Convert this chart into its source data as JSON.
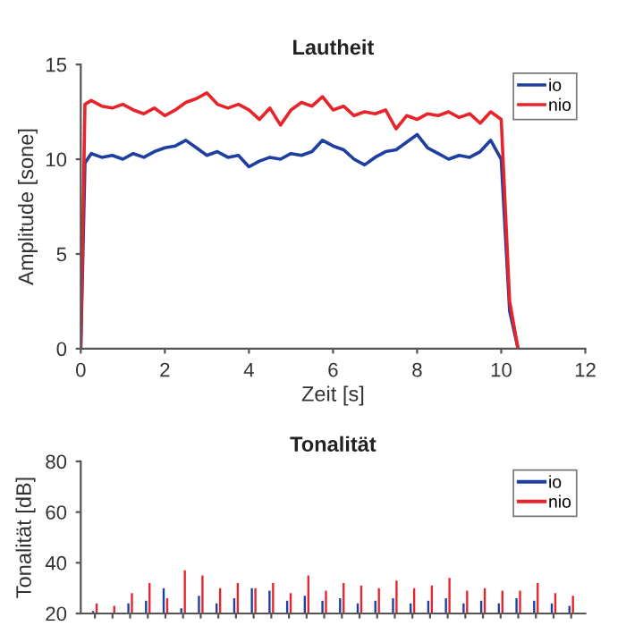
{
  "chart_data": [
    {
      "type": "line",
      "title": "Lautheit",
      "xlabel": "Zeit [s]",
      "ylabel": "Amplitude [sone]",
      "xlim": [
        0,
        12
      ],
      "ylim": [
        0,
        15
      ],
      "xticks": [
        0,
        2,
        4,
        6,
        8,
        10,
        12
      ],
      "yticks": [
        0,
        5,
        10,
        15
      ],
      "legend": "top right",
      "grid": false,
      "series": [
        {
          "name": "io",
          "color": "#1f3fa0",
          "x": [
            0,
            0.1,
            0.25,
            0.5,
            0.75,
            1,
            1.25,
            1.5,
            1.75,
            2,
            2.25,
            2.5,
            2.75,
            3,
            3.25,
            3.5,
            3.75,
            4,
            4.25,
            4.5,
            4.75,
            5,
            5.25,
            5.5,
            5.75,
            6,
            6.25,
            6.5,
            6.75,
            7,
            7.25,
            7.5,
            7.75,
            8,
            8.25,
            8.5,
            8.75,
            9,
            9.25,
            9.5,
            9.75,
            10,
            10.2,
            10.4
          ],
          "values": [
            0,
            9.8,
            10.3,
            10.1,
            10.2,
            10.0,
            10.3,
            10.1,
            10.4,
            10.6,
            10.7,
            11.0,
            10.6,
            10.2,
            10.4,
            10.1,
            10.2,
            9.6,
            9.9,
            10.1,
            10.0,
            10.3,
            10.2,
            10.4,
            11.0,
            10.7,
            10.5,
            10.0,
            9.7,
            10.1,
            10.4,
            10.5,
            10.9,
            11.3,
            10.6,
            10.3,
            10.0,
            10.2,
            10.1,
            10.4,
            11.0,
            10.0,
            2.0,
            0
          ]
        },
        {
          "name": "nio",
          "color": "#e8242b",
          "x": [
            0,
            0.1,
            0.25,
            0.5,
            0.75,
            1,
            1.25,
            1.5,
            1.75,
            2,
            2.25,
            2.5,
            2.75,
            3,
            3.25,
            3.5,
            3.75,
            4,
            4.25,
            4.5,
            4.75,
            5,
            5.25,
            5.5,
            5.75,
            6,
            6.25,
            6.5,
            6.75,
            7,
            7.25,
            7.5,
            7.75,
            8,
            8.25,
            8.5,
            8.75,
            9,
            9.25,
            9.5,
            9.75,
            10,
            10.2,
            10.4
          ],
          "values": [
            0,
            12.9,
            13.1,
            12.8,
            12.7,
            12.9,
            12.6,
            12.4,
            12.7,
            12.3,
            12.6,
            13.0,
            13.2,
            13.5,
            12.9,
            12.7,
            12.9,
            12.6,
            12.1,
            12.7,
            11.8,
            12.6,
            13.0,
            12.8,
            13.3,
            12.6,
            12.8,
            12.3,
            12.5,
            12.4,
            12.6,
            11.6,
            12.3,
            12.1,
            12.4,
            12.3,
            12.5,
            12.2,
            12.4,
            11.9,
            12.5,
            12.1,
            2.5,
            0
          ]
        }
      ]
    },
    {
      "type": "bar",
      "title": "Tonalität",
      "ylabel": "Tonalität [dB]",
      "ylim": [
        20,
        80
      ],
      "yticks": [
        20,
        40,
        60,
        80
      ],
      "legend": "top right",
      "grid": false,
      "tick_labels": "y",
      "categories": [
        null,
        null,
        null,
        null,
        null,
        null,
        null,
        null,
        null,
        null,
        null,
        null,
        null,
        null,
        null,
        null,
        null,
        null,
        null,
        null,
        null,
        null,
        null,
        null,
        null,
        null,
        null,
        null
      ],
      "series": [
        {
          "name": "io",
          "color": "#1f3fa0",
          "values": [
            21,
            20,
            24,
            25,
            30,
            22,
            27,
            24,
            26,
            30,
            29,
            25,
            27,
            25,
            26,
            24,
            25,
            26,
            24,
            25,
            26,
            24,
            25,
            24,
            26,
            25,
            24,
            23
          ]
        },
        {
          "name": "nio",
          "color": "#e8242b",
          "values": [
            24,
            23,
            28,
            32,
            26,
            37,
            35,
            30,
            32,
            30,
            32,
            28,
            35,
            29,
            32,
            31,
            30,
            33,
            30,
            31,
            34,
            29,
            30,
            29,
            29,
            32,
            28,
            27
          ]
        }
      ]
    }
  ]
}
